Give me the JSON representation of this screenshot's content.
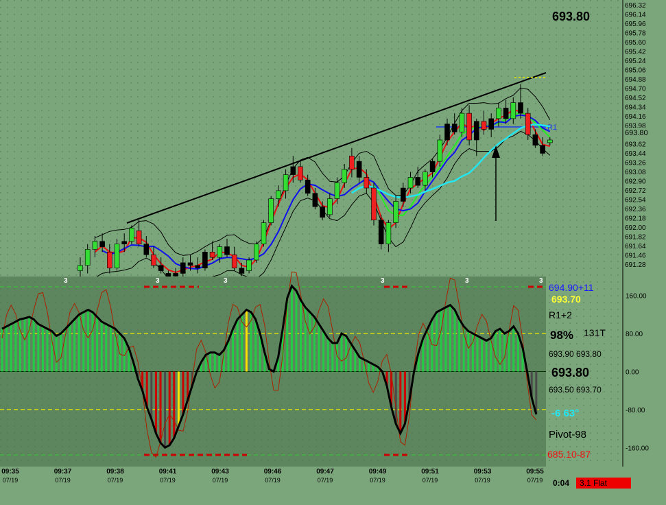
{
  "colors": {
    "background": "#7ba67b",
    "osc_panel": "#5e865e",
    "up_candle": "#33dd33",
    "down_candle": "#ee2020",
    "neutral_candle": "#000000",
    "ma_red": "#ee1111",
    "ma_green": "#22ee22",
    "ma_blue": "#1010ee",
    "ma_cyan": "#22e6f0",
    "bands": "#000000",
    "trendline": "#000000",
    "r1_line": "#1a3cf0",
    "osc_up": "#22cc44",
    "osc_down": "#cc0000",
    "osc_neutral": "#4a4a4a",
    "osc_highlight": "#ffe000",
    "dashed_yellow": "#e8e800",
    "dashed_red": "#cc0000"
  },
  "header": {
    "last_price": "693.80"
  },
  "price_axis": {
    "labels": [
      "696.32",
      "696.14",
      "695.96",
      "695.78",
      "695.60",
      "695.42",
      "695.24",
      "695.06",
      "694.88",
      "694.70",
      "694.52",
      "694.34",
      "694.16",
      "693.98",
      "693.80",
      "693.62",
      "693.44",
      "693.26",
      "693.08",
      "692.90",
      "692.72",
      "692.54",
      "692.36",
      "692.18",
      "692.00",
      "691.82",
      "691.64",
      "691.46",
      "691.28"
    ],
    "current_label": "693.80"
  },
  "osc_axis": {
    "labels": [
      "160.00",
      "80.00",
      "0.00",
      "-80.00",
      "-160.00"
    ]
  },
  "time_axis": [
    {
      "time": "09:35",
      "date": "07/19"
    },
    {
      "time": "09:37",
      "date": "07/19"
    },
    {
      "time": "09:38",
      "date": "07/19"
    },
    {
      "time": "09:41",
      "date": "07/19"
    },
    {
      "time": "09:43",
      "date": "07/19"
    },
    {
      "time": "09:46",
      "date": "07/19"
    },
    {
      "time": "09:47",
      "date": "07/19"
    },
    {
      "time": "09:49",
      "date": "07/19"
    },
    {
      "time": "09:51",
      "date": "07/19"
    },
    {
      "time": "09:53",
      "date": "07/19"
    },
    {
      "time": "09:55",
      "date": "07/19"
    }
  ],
  "info_panel": {
    "line1": "694.90+11",
    "line2": "693.70",
    "line3": "R1+2",
    "pct": "98%",
    "ticks": "131T",
    "line5": "693.90 693.80",
    "big": "693.80",
    "line7": "693.50 693.70",
    "angle": "-6  63°",
    "pivot": "Pivot-98",
    "low": "685.10-87"
  },
  "footer": {
    "clock": "0:04",
    "status": "3.1 Flat",
    "status_color": "#ee0000"
  },
  "markers": {
    "count_label": "3",
    "r1_label": "R1"
  },
  "chart_data": {
    "type": "candlestick",
    "ylim": [
      691.28,
      696.32
    ],
    "osc_ylim": [
      -200,
      200
    ],
    "candles": [
      {
        "o": 691.35,
        "h": 691.6,
        "l": 691.2,
        "c": 691.45,
        "d": "u"
      },
      {
        "o": 691.45,
        "h": 691.85,
        "l": 691.3,
        "c": 691.75,
        "d": "u"
      },
      {
        "o": 691.75,
        "h": 692.0,
        "l": 691.6,
        "c": 691.9,
        "d": "u"
      },
      {
        "o": 691.9,
        "h": 692.05,
        "l": 691.7,
        "c": 691.8,
        "d": "n"
      },
      {
        "o": 691.7,
        "h": 691.85,
        "l": 691.3,
        "c": 691.4,
        "d": "d"
      },
      {
        "o": 691.4,
        "h": 691.95,
        "l": 691.35,
        "c": 691.85,
        "d": "u"
      },
      {
        "o": 691.85,
        "h": 692.05,
        "l": 691.7,
        "c": 691.9,
        "d": "n"
      },
      {
        "o": 691.9,
        "h": 692.2,
        "l": 691.85,
        "c": 692.15,
        "d": "u"
      },
      {
        "o": 692.1,
        "h": 692.3,
        "l": 691.8,
        "c": 691.85,
        "d": "d"
      },
      {
        "o": 691.85,
        "h": 692.0,
        "l": 691.6,
        "c": 691.65,
        "d": "n"
      },
      {
        "o": 691.65,
        "h": 691.8,
        "l": 691.4,
        "c": 691.45,
        "d": "d"
      },
      {
        "o": 691.45,
        "h": 691.6,
        "l": 691.3,
        "c": 691.35,
        "d": "n"
      },
      {
        "o": 691.2,
        "h": 691.35,
        "l": 691.1,
        "c": 691.3,
        "d": "n"
      },
      {
        "o": 691.25,
        "h": 691.4,
        "l": 691.15,
        "c": 691.3,
        "d": "n"
      },
      {
        "o": 691.3,
        "h": 691.6,
        "l": 691.2,
        "c": 691.5,
        "d": "n"
      },
      {
        "o": 691.5,
        "h": 691.65,
        "l": 691.35,
        "c": 691.45,
        "d": "n"
      },
      {
        "o": 691.45,
        "h": 691.6,
        "l": 691.3,
        "c": 691.4,
        "d": "n"
      },
      {
        "o": 691.4,
        "h": 691.75,
        "l": 691.35,
        "c": 691.7,
        "d": "n"
      },
      {
        "o": 691.7,
        "h": 691.9,
        "l": 691.55,
        "c": 691.6,
        "d": "d"
      },
      {
        "o": 691.6,
        "h": 691.85,
        "l": 691.5,
        "c": 691.8,
        "d": "u"
      },
      {
        "o": 691.8,
        "h": 691.95,
        "l": 691.6,
        "c": 691.65,
        "d": "n"
      },
      {
        "o": 691.65,
        "h": 691.8,
        "l": 691.35,
        "c": 691.4,
        "d": "d"
      },
      {
        "o": 691.4,
        "h": 691.5,
        "l": 691.25,
        "c": 691.3,
        "d": "n"
      },
      {
        "o": 691.35,
        "h": 691.6,
        "l": 691.3,
        "c": 691.55,
        "d": "u"
      },
      {
        "o": 691.55,
        "h": 691.9,
        "l": 691.5,
        "c": 691.85,
        "d": "u"
      },
      {
        "o": 691.85,
        "h": 692.3,
        "l": 691.8,
        "c": 692.25,
        "d": "u"
      },
      {
        "o": 692.25,
        "h": 692.75,
        "l": 692.2,
        "c": 692.7,
        "d": "u"
      },
      {
        "o": 692.7,
        "h": 692.95,
        "l": 692.55,
        "c": 692.85,
        "d": "u"
      },
      {
        "o": 692.85,
        "h": 693.25,
        "l": 692.7,
        "c": 693.15,
        "d": "u"
      },
      {
        "o": 693.15,
        "h": 693.5,
        "l": 693.0,
        "c": 693.3,
        "d": "n"
      },
      {
        "o": 693.3,
        "h": 693.4,
        "l": 693.0,
        "c": 693.05,
        "d": "d"
      },
      {
        "o": 693.05,
        "h": 693.15,
        "l": 692.75,
        "c": 692.8,
        "d": "n"
      },
      {
        "o": 692.8,
        "h": 692.9,
        "l": 692.5,
        "c": 692.55,
        "d": "n"
      },
      {
        "o": 692.55,
        "h": 692.65,
        "l": 692.3,
        "c": 692.35,
        "d": "n"
      },
      {
        "o": 692.4,
        "h": 692.8,
        "l": 692.35,
        "c": 692.7,
        "d": "u"
      },
      {
        "o": 692.7,
        "h": 693.1,
        "l": 692.6,
        "c": 693.0,
        "d": "u"
      },
      {
        "o": 693.0,
        "h": 693.35,
        "l": 692.9,
        "c": 693.25,
        "d": "u"
      },
      {
        "o": 693.25,
        "h": 693.65,
        "l": 693.1,
        "c": 693.5,
        "d": "d"
      },
      {
        "o": 693.4,
        "h": 693.5,
        "l": 693.0,
        "c": 693.1,
        "d": "n"
      },
      {
        "o": 693.1,
        "h": 693.25,
        "l": 692.8,
        "c": 692.9,
        "d": "d"
      },
      {
        "o": 692.9,
        "h": 693.0,
        "l": 692.2,
        "c": 692.3,
        "d": "d"
      },
      {
        "o": 692.3,
        "h": 692.4,
        "l": 691.75,
        "c": 691.85,
        "d": "n"
      },
      {
        "o": 691.85,
        "h": 692.3,
        "l": 691.7,
        "c": 692.25,
        "d": "u"
      },
      {
        "o": 692.25,
        "h": 692.75,
        "l": 692.15,
        "c": 692.65,
        "d": "u"
      },
      {
        "o": 692.65,
        "h": 693.0,
        "l": 692.55,
        "c": 692.9,
        "d": "n"
      },
      {
        "o": 692.9,
        "h": 693.2,
        "l": 692.8,
        "c": 693.1,
        "d": "u"
      },
      {
        "o": 693.1,
        "h": 693.3,
        "l": 692.9,
        "c": 692.95,
        "d": "n"
      },
      {
        "o": 692.95,
        "h": 693.25,
        "l": 692.85,
        "c": 693.2,
        "d": "u"
      },
      {
        "o": 693.2,
        "h": 693.45,
        "l": 693.1,
        "c": 693.4,
        "d": "n"
      },
      {
        "o": 693.4,
        "h": 693.9,
        "l": 693.3,
        "c": 693.8,
        "d": "u"
      },
      {
        "o": 693.8,
        "h": 694.2,
        "l": 693.7,
        "c": 694.1,
        "d": "n"
      },
      {
        "o": 694.1,
        "h": 694.3,
        "l": 693.9,
        "c": 693.95,
        "d": "n"
      },
      {
        "o": 693.95,
        "h": 694.4,
        "l": 693.85,
        "c": 694.3,
        "d": "u"
      },
      {
        "o": 694.3,
        "h": 694.45,
        "l": 693.7,
        "c": 693.8,
        "d": "d"
      },
      {
        "o": 693.8,
        "h": 694.2,
        "l": 693.5,
        "c": 694.15,
        "d": "n"
      },
      {
        "o": 694.15,
        "h": 694.35,
        "l": 693.9,
        "c": 694.0,
        "d": "d"
      },
      {
        "o": 694.0,
        "h": 694.3,
        "l": 693.85,
        "c": 694.2,
        "d": "n"
      },
      {
        "o": 694.2,
        "h": 694.5,
        "l": 694.05,
        "c": 694.4,
        "d": "u"
      },
      {
        "o": 694.4,
        "h": 694.55,
        "l": 694.1,
        "c": 694.2,
        "d": "n"
      },
      {
        "o": 694.2,
        "h": 694.6,
        "l": 694.1,
        "c": 694.5,
        "d": "u"
      },
      {
        "o": 694.5,
        "h": 694.85,
        "l": 694.2,
        "c": 694.3,
        "d": "n"
      },
      {
        "o": 694.3,
        "h": 694.4,
        "l": 693.8,
        "c": 693.9,
        "d": "d"
      },
      {
        "o": 693.9,
        "h": 694.0,
        "l": 693.65,
        "c": 693.7,
        "d": "n"
      },
      {
        "o": 693.7,
        "h": 693.85,
        "l": 693.5,
        "c": 693.55,
        "d": "n"
      },
      {
        "o": 693.75,
        "h": 693.85,
        "l": 693.7,
        "c": 693.8,
        "d": "u"
      }
    ],
    "oscillator": [
      90,
      95,
      100,
      105,
      110,
      112,
      115,
      110,
      100,
      95,
      90,
      85,
      75,
      80,
      90,
      100,
      110,
      120,
      125,
      130,
      125,
      115,
      105,
      100,
      95,
      90,
      80,
      70,
      50,
      20,
      -15,
      -40,
      -75,
      -100,
      -130,
      -150,
      -160,
      -155,
      -140,
      -115,
      -90,
      -60,
      -30,
      0,
      20,
      35,
      40,
      40,
      35,
      45,
      65,
      90,
      110,
      120,
      130,
      125,
      110,
      80,
      40,
      5,
      0,
      30,
      90,
      155,
      180,
      170,
      150,
      135,
      125,
      115,
      100,
      85,
      70,
      60,
      60,
      80,
      75,
      60,
      45,
      30,
      25,
      20,
      15,
      10,
      0,
      -30,
      -75,
      -110,
      -130,
      -110,
      -60,
      0,
      40,
      70,
      90,
      110,
      125,
      130,
      135,
      140,
      130,
      110,
      95,
      85,
      80,
      75,
      70,
      65,
      70,
      85,
      90,
      80,
      85,
      95,
      80,
      50,
      0,
      -55,
      -90
    ]
  }
}
